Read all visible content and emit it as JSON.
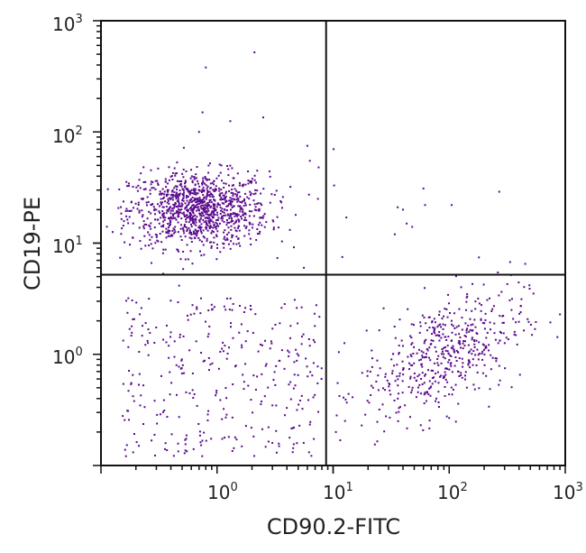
{
  "chart_data": {
    "type": "scatter",
    "title": "",
    "xlabel": "CD90.2-FITC",
    "ylabel": "CD19-PE",
    "xscale": "log",
    "yscale": "log",
    "xlim": [
      0.1,
      1000
    ],
    "ylim": [
      0.1,
      1000
    ],
    "x_ticks": [
      {
        "base": "10",
        "exp": "0",
        "value": 1
      },
      {
        "base": "10",
        "exp": "1",
        "value": 10
      },
      {
        "base": "10",
        "exp": "2",
        "value": 100
      },
      {
        "base": "10",
        "exp": "3",
        "value": 1000
      }
    ],
    "y_ticks": [
      {
        "base": "10",
        "exp": "0",
        "value": 1
      },
      {
        "base": "10",
        "exp": "1",
        "value": 10
      },
      {
        "base": "10",
        "exp": "2",
        "value": 100
      },
      {
        "base": "10",
        "exp": "3",
        "value": 1000
      }
    ],
    "grid": false,
    "legend": "none",
    "point_color": "#5a0a8c",
    "quadrant_gates": {
      "x": 8.7,
      "y": 5.2
    },
    "populations": [
      {
        "quadrant": "upper-left",
        "center": [
          0.7,
          20
        ],
        "spread_decades": [
          0.3,
          0.17
        ],
        "count": 1100
      },
      {
        "quadrant": "lower-left",
        "x_range": [
          0.15,
          8
        ],
        "y_range": [
          0.12,
          3.2
        ],
        "count": 330
      },
      {
        "quadrant": "lower-right",
        "center": [
          90,
          1.0
        ],
        "spread_decades": [
          0.35,
          0.3
        ],
        "count": 520
      }
    ],
    "outliers": [
      [
        0.8,
        380
      ],
      [
        2.1,
        520
      ],
      [
        0.75,
        150
      ],
      [
        1.3,
        125
      ],
      [
        2.5,
        135
      ],
      [
        0.7,
        100
      ],
      [
        6.0,
        75
      ],
      [
        6.3,
        55
      ],
      [
        7.5,
        48
      ],
      [
        5.6,
        6
      ],
      [
        7.4,
        25
      ],
      [
        10.1,
        70
      ],
      [
        10.2,
        33
      ],
      [
        13,
        17
      ],
      [
        12,
        7.5
      ],
      [
        36,
        21
      ],
      [
        40,
        20
      ],
      [
        43,
        15
      ],
      [
        48,
        14
      ],
      [
        34,
        12
      ],
      [
        60,
        31
      ],
      [
        62,
        22
      ],
      [
        105,
        22
      ],
      [
        270,
        29
      ]
    ]
  }
}
